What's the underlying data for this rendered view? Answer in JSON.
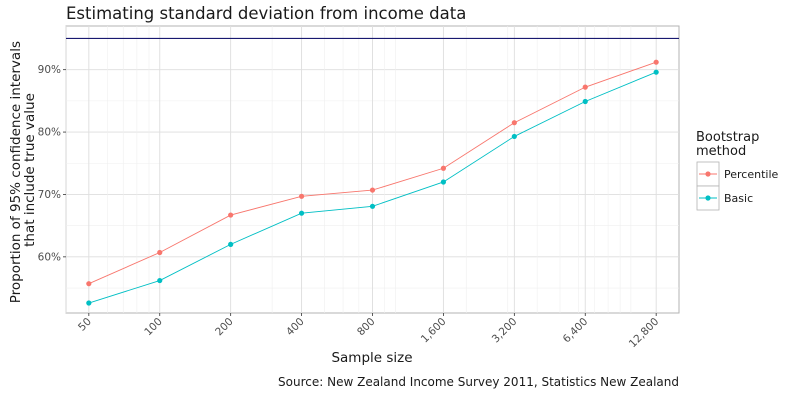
{
  "chart_data": {
    "type": "line",
    "title": "Estimating standard deviation from income data",
    "xlabel": "Sample size",
    "ylabel_lines": [
      "Proportion of 95% confidence intervals",
      "that include true value"
    ],
    "x_scale": "log",
    "x_ticks": [
      50,
      100,
      200,
      400,
      800,
      1600,
      3200,
      6400,
      12800
    ],
    "x_tick_labels": [
      "50",
      "100",
      "200",
      "400",
      "800",
      "1,600",
      "3,200",
      "6,400",
      "12,800"
    ],
    "xlim": [
      40,
      16000
    ],
    "y_ticks": [
      0.6,
      0.7,
      0.8,
      0.9
    ],
    "y_tick_labels": [
      "60%",
      "70%",
      "80%",
      "90%"
    ],
    "ylim": [
      0.51,
      0.97
    ],
    "reference_line": {
      "y": 0.95,
      "color": "#191970"
    },
    "grid": true,
    "legend": {
      "title_lines": [
        "Bootstrap",
        "method"
      ],
      "position": "right"
    },
    "caption": "Source: New Zealand Income Survey 2011, Statistics New Zealand",
    "series": [
      {
        "name": "Percentile",
        "color": "#F8766D",
        "x": [
          50,
          100,
          200,
          400,
          800,
          1600,
          3200,
          6400,
          12800
        ],
        "y": [
          0.557,
          0.607,
          0.667,
          0.697,
          0.707,
          0.742,
          0.815,
          0.872,
          0.912
        ]
      },
      {
        "name": "Basic",
        "color": "#00BFC4",
        "x": [
          50,
          100,
          200,
          400,
          800,
          1600,
          3200,
          6400,
          12800
        ],
        "y": [
          0.526,
          0.562,
          0.62,
          0.67,
          0.681,
          0.72,
          0.793,
          0.849,
          0.896
        ]
      }
    ]
  }
}
